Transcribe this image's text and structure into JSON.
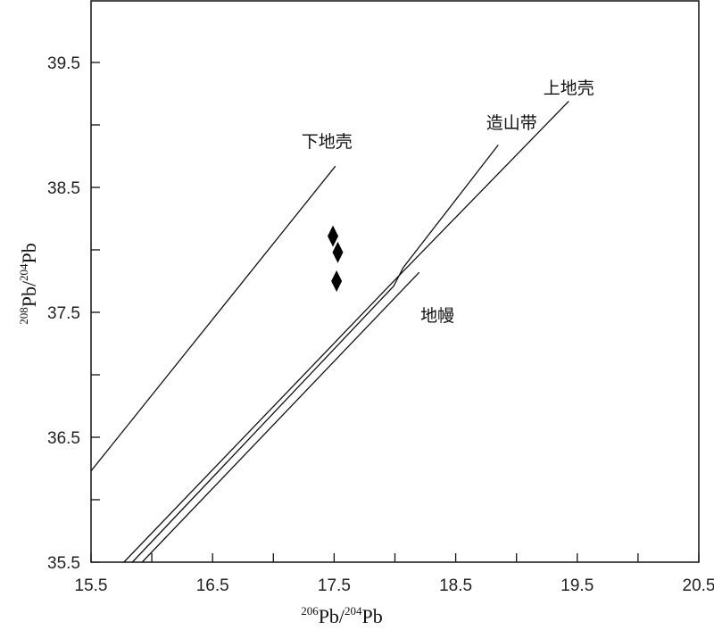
{
  "chart_data": {
    "type": "scatter",
    "xlabel": {
      "sup1": "206",
      "mid": "Pb/",
      "sup2": "204",
      "tail": "Pb"
    },
    "ylabel": {
      "sup1": "208",
      "mid": "Pb/",
      "sup2": "204",
      "tail": "Pb"
    },
    "xlim": [
      15.5,
      20.5
    ],
    "ylim": [
      35.5,
      40.0
    ],
    "x_ticks": [
      {
        "value": 15.5,
        "label": "15.5"
      },
      {
        "value": 16.5,
        "label": "16.5"
      },
      {
        "value": 17.5,
        "label": "17.5"
      },
      {
        "value": 18.5,
        "label": "18.5"
      },
      {
        "value": 19.5,
        "label": "19.5"
      },
      {
        "value": 20.5,
        "label": "20.5"
      }
    ],
    "x_minor_ticks": [
      16.0,
      17.0,
      18.0,
      19.0,
      20.0
    ],
    "y_ticks": [
      {
        "value": 35.5,
        "label": "35.5"
      },
      {
        "value": 36.5,
        "label": "36.5"
      },
      {
        "value": 37.5,
        "label": "37.5"
      },
      {
        "value": 38.5,
        "label": "38.5"
      },
      {
        "value": 39.5,
        "label": "39.5"
      }
    ],
    "y_minor_ticks": [
      36.0,
      37.0,
      38.0,
      39.0
    ],
    "series": [
      {
        "name": "下地壳",
        "kind": "line",
        "points": [
          [
            15.5,
            36.23
          ],
          [
            17.51,
            38.67
          ]
        ],
        "label_at": [
          17.44,
          38.82
        ]
      },
      {
        "name": "上地壳",
        "kind": "line",
        "points": [
          [
            15.77,
            35.5
          ],
          [
            18.07,
            37.83
          ],
          [
            19.43,
            39.19
          ]
        ],
        "label_at": [
          19.43,
          39.25
        ]
      },
      {
        "name": "造山带",
        "kind": "line",
        "points": [
          [
            15.84,
            35.5
          ],
          [
            17.99,
            37.71
          ],
          [
            18.07,
            37.86
          ],
          [
            18.85,
            38.84
          ]
        ],
        "label_at": [
          18.96,
          38.97
        ]
      },
      {
        "name": "地幔",
        "kind": "line",
        "points": [
          [
            15.92,
            35.5
          ],
          [
            18.2,
            37.82
          ]
        ],
        "label_at": [
          18.35,
          37.43
        ]
      },
      {
        "name": "",
        "kind": "scatter",
        "marker": "diamond",
        "points": [
          [
            17.49,
            38.11
          ],
          [
            17.53,
            37.98
          ],
          [
            17.52,
            37.75
          ]
        ]
      }
    ],
    "grid": false,
    "colors": {
      "line": "#111111",
      "marker": "#000000",
      "axis": "#111111"
    }
  }
}
